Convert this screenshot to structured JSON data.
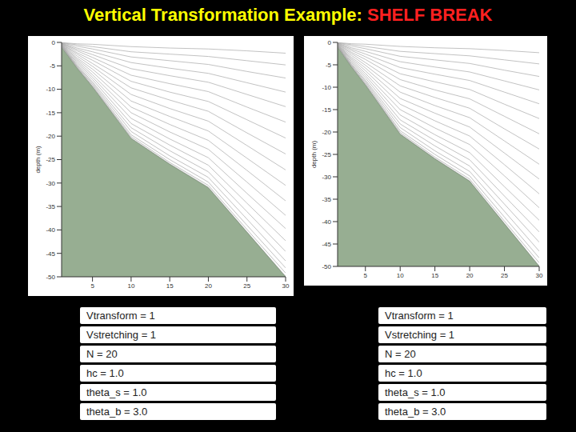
{
  "title": {
    "text": "Vertical Transformation Example:",
    "highlight": "SHELF BREAK"
  },
  "chart_data": [
    {
      "type": "line",
      "ylabel": "depth (m)",
      "grid": false,
      "color": "#a8a8a8",
      "x": [
        1,
        3,
        5,
        10,
        15,
        20,
        25,
        30
      ],
      "xlim": [
        1,
        30
      ],
      "xticks": [
        5,
        10,
        15,
        20,
        25,
        30
      ],
      "ylim": [
        -50,
        0
      ],
      "yticks": [
        0,
        -5,
        -10,
        -15,
        -20,
        -25,
        -30,
        -35,
        -40,
        -45,
        -50
      ],
      "series": [
        {
          "type": "area",
          "color": "#97ae92",
          "values": [
            -1,
            -5.5,
            -9.5,
            -20.5,
            -26,
            -31,
            -40.5,
            -50
          ]
        },
        {
          "values": [
            -0.05,
            -0.3,
            -0.4,
            -0.9,
            -1.2,
            -1.4,
            -1.8,
            -2.3
          ]
        },
        {
          "values": [
            -0.1,
            -0.5,
            -0.9,
            -2,
            -2.5,
            -3,
            -3.9,
            -4.8
          ]
        },
        {
          "values": [
            -0.15,
            -0.8,
            -1.4,
            -3.1,
            -3.9,
            -4.7,
            -6.2,
            -7.6
          ]
        },
        {
          "values": [
            -0.2,
            -1.2,
            -2,
            -4.3,
            -5.5,
            -6.6,
            -8.6,
            -10.6
          ]
        },
        {
          "values": [
            -0.25,
            -1.5,
            -2.6,
            -5.6,
            -7.1,
            -8.5,
            -11.1,
            -13.7
          ]
        },
        {
          "values": [
            -0.3,
            -1.8,
            -3.2,
            -7,
            -8.8,
            -10.5,
            -13.8,
            -17
          ]
        },
        {
          "values": [
            -0.35,
            -2.2,
            -3.8,
            -8.3,
            -10.6,
            -12.6,
            -16.5,
            -20.4
          ]
        },
        {
          "values": [
            -0.4,
            -2.5,
            -4.5,
            -9.7,
            -12.3,
            -14.7,
            -19.3,
            -23.8
          ]
        },
        {
          "values": [
            -0.45,
            -2.9,
            -5.1,
            -11.1,
            -14.1,
            -16.8,
            -22,
            -27.2
          ]
        },
        {
          "values": [
            -0.5,
            -3.3,
            -5.7,
            -12.5,
            -15.8,
            -18.9,
            -24.7,
            -30.5
          ]
        },
        {
          "values": [
            -0.55,
            -3.6,
            -6.3,
            -13.8,
            -17.5,
            -20.9,
            -27.3,
            -33.8
          ]
        },
        {
          "values": [
            -0.6,
            -3.9,
            -6.9,
            -15,
            -19.1,
            -22.8,
            -29.8,
            -36.9
          ]
        },
        {
          "values": [
            -0.65,
            -4.2,
            -7.4,
            -16.2,
            -20.6,
            -24.6,
            -32.2,
            -39.7
          ]
        },
        {
          "values": [
            -0.7,
            -4.5,
            -7.9,
            -17.3,
            -21.9,
            -26.2,
            -34.3,
            -42.3
          ]
        },
        {
          "values": [
            -0.75,
            -4.8,
            -8.4,
            -18.2,
            -23.1,
            -27.6,
            -36.1,
            -44.6
          ]
        },
        {
          "values": [
            -0.8,
            -5,
            -8.7,
            -19,
            -24.2,
            -28.8,
            -37.7,
            -46.6
          ]
        },
        {
          "values": [
            -0.85,
            -5.2,
            -9,
            -19.7,
            -25,
            -29.8,
            -39,
            -48.1
          ]
        },
        {
          "values": [
            -0.9,
            -5.3,
            -9.3,
            -20.1,
            -25.6,
            -30.5,
            -39.9,
            -49.2
          ]
        },
        {
          "values": [
            -0.95,
            -5.4,
            -9.4,
            -20.4,
            -25.9,
            -30.9,
            -40.4,
            -49.9
          ]
        }
      ]
    },
    {
      "type": "line",
      "ylabel": "depth (m)",
      "grid": false,
      "color": "#a8a8a8",
      "x": [
        1,
        3,
        5,
        10,
        15,
        20,
        25,
        30
      ],
      "xlim": [
        1,
        30
      ],
      "xticks": [
        5,
        10,
        15,
        20,
        25,
        30
      ],
      "ylim": [
        -50,
        0
      ],
      "yticks": [
        0,
        -5,
        -10,
        -15,
        -20,
        -25,
        -30,
        -35,
        -40,
        -45,
        -50
      ],
      "series": [
        {
          "type": "area",
          "color": "#97ae92",
          "values": [
            -1,
            -5.5,
            -9.5,
            -20.5,
            -26,
            -31,
            -40.5,
            -50
          ]
        },
        {
          "values": [
            -0.05,
            -0.3,
            -0.4,
            -0.9,
            -1.2,
            -1.4,
            -1.8,
            -2.3
          ]
        },
        {
          "values": [
            -0.1,
            -0.5,
            -0.9,
            -2,
            -2.5,
            -3,
            -3.9,
            -4.8
          ]
        },
        {
          "values": [
            -0.15,
            -0.8,
            -1.4,
            -3.1,
            -3.9,
            -4.7,
            -6.2,
            -7.6
          ]
        },
        {
          "values": [
            -0.2,
            -1.2,
            -2,
            -4.3,
            -5.5,
            -6.6,
            -8.6,
            -10.6
          ]
        },
        {
          "values": [
            -0.25,
            -1.5,
            -2.6,
            -5.6,
            -7.1,
            -8.5,
            -11.1,
            -13.7
          ]
        },
        {
          "values": [
            -0.3,
            -1.8,
            -3.2,
            -7,
            -8.8,
            -10.5,
            -13.8,
            -17
          ]
        },
        {
          "values": [
            -0.35,
            -2.2,
            -3.8,
            -8.3,
            -10.6,
            -12.6,
            -16.5,
            -20.4
          ]
        },
        {
          "values": [
            -0.4,
            -2.5,
            -4.5,
            -9.7,
            -12.3,
            -14.7,
            -19.3,
            -23.8
          ]
        },
        {
          "values": [
            -0.45,
            -2.9,
            -5.1,
            -11.1,
            -14.1,
            -16.8,
            -22,
            -27.2
          ]
        },
        {
          "values": [
            -0.5,
            -3.3,
            -5.7,
            -12.5,
            -15.8,
            -18.9,
            -24.7,
            -30.5
          ]
        },
        {
          "values": [
            -0.55,
            -3.6,
            -6.3,
            -13.8,
            -17.5,
            -20.9,
            -27.3,
            -33.8
          ]
        },
        {
          "values": [
            -0.6,
            -3.9,
            -6.9,
            -15,
            -19.1,
            -22.8,
            -29.8,
            -36.9
          ]
        },
        {
          "values": [
            -0.65,
            -4.2,
            -7.4,
            -16.2,
            -20.6,
            -24.6,
            -32.2,
            -39.7
          ]
        },
        {
          "values": [
            -0.7,
            -4.5,
            -7.9,
            -17.3,
            -21.9,
            -26.2,
            -34.3,
            -42.3
          ]
        },
        {
          "values": [
            -0.75,
            -4.8,
            -8.4,
            -18.2,
            -23.1,
            -27.6,
            -36.1,
            -44.6
          ]
        },
        {
          "values": [
            -0.8,
            -5,
            -8.7,
            -19,
            -24.2,
            -28.8,
            -37.7,
            -46.6
          ]
        },
        {
          "values": [
            -0.85,
            -5.2,
            -9,
            -19.7,
            -25,
            -29.8,
            -39,
            -48.1
          ]
        },
        {
          "values": [
            -0.9,
            -5.3,
            -9.3,
            -20.1,
            -25.6,
            -30.5,
            -39.9,
            -49.2
          ]
        },
        {
          "values": [
            -0.95,
            -5.4,
            -9.4,
            -20.4,
            -25.9,
            -30.9,
            -40.4,
            -49.9
          ]
        }
      ]
    }
  ],
  "tables": [
    {
      "rows": [
        "Vtransform = 1",
        "Vstretching = 1",
        "N = 20",
        "hc = 1.0",
        "theta_s = 1.0",
        "theta_b = 3.0"
      ]
    },
    {
      "rows": [
        "Vtransform = 1",
        "Vstretching = 1",
        "N = 20",
        "hc = 1.0",
        "theta_s = 1.0",
        "theta_b = 3.0"
      ]
    }
  ]
}
